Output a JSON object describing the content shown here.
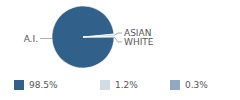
{
  "chart_data": {
    "type": "pie",
    "categories": [
      "A.I.",
      "ASIAN",
      "WHITE"
    ],
    "values": [
      98.5,
      1.2,
      0.3
    ],
    "value_labels": [
      "98.5%",
      "1.2%",
      "0.3%"
    ],
    "colors": [
      "#31608a",
      "#d0dde8",
      "#91a8c0"
    ],
    "legend": "bottom"
  }
}
